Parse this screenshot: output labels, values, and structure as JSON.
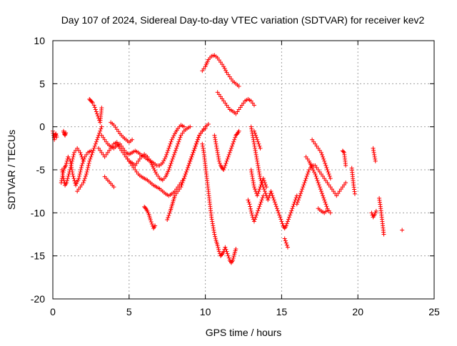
{
  "chart_data": {
    "type": "scatter",
    "title": "Day 107 of 2024, Sidereal Day-to-day VTEC variation (SDTVAR) for receiver kev2",
    "xlabel": "GPS time / hours",
    "ylabel": "SDTVAR / TECUs",
    "xlim": [
      0,
      25
    ],
    "ylim": [
      -20,
      10
    ],
    "xticks": [
      0,
      5,
      10,
      15,
      20,
      25
    ],
    "yticks": [
      -20,
      -15,
      -10,
      -5,
      0,
      5,
      10
    ],
    "grid": true,
    "marker": "+",
    "color": "#ff0000",
    "series": [
      {
        "name": "SDTVAR",
        "segments": [
          {
            "x": [
              0.0,
              0.05,
              0.1,
              0.15,
              0.2,
              0.25
            ],
            "y": [
              -0.5,
              -1.0,
              -1.5,
              -1.0,
              -0.8,
              -1.2
            ]
          },
          {
            "x": [
              0.55,
              0.65,
              0.75,
              0.85,
              1.0,
              1.15,
              1.3,
              1.5,
              1.7,
              1.9,
              2.1,
              2.3,
              2.5
            ],
            "y": [
              -6.5,
              -5.5,
              -4.8,
              -4.5,
              -3.5,
              -4.0,
              -5.5,
              -6.8,
              -6.0,
              -4.5,
              -3.5,
              -3.0,
              -2.8
            ]
          },
          {
            "x": [
              0.6,
              0.7,
              0.8,
              0.9,
              1.05,
              1.2,
              1.4,
              1.6,
              1.8,
              2.0
            ],
            "y": [
              -5.0,
              -6.0,
              -6.8,
              -6.5,
              -5.5,
              -4.5,
              -3.0,
              -2.5,
              -3.0,
              -4.0
            ]
          },
          {
            "x": [
              0.7,
              0.75,
              0.8,
              0.85
            ],
            "y": [
              -0.5,
              -0.8,
              -1.0,
              -0.7
            ]
          },
          {
            "x": [
              2.4,
              2.5,
              2.6
            ],
            "y": [
              3.2,
              3.0,
              2.8
            ]
          },
          {
            "x": [
              1.6,
              1.8,
              2.0,
              2.2,
              2.4,
              2.6,
              2.8,
              3.0,
              3.2
            ],
            "y": [
              -7.5,
              -7.0,
              -6.5,
              -5.5,
              -4.0,
              -3.0,
              -2.0,
              -1.0,
              0.0
            ]
          },
          {
            "x": [
              2.7,
              2.8,
              2.9,
              3.0,
              3.1,
              3.2
            ],
            "y": [
              2.5,
              2.0,
              1.5,
              1.0,
              0.5,
              2.2
            ]
          },
          {
            "x": [
              3.2,
              3.4,
              3.6,
              3.8,
              4.0,
              4.2,
              4.4,
              4.6,
              4.8,
              5.0,
              5.2,
              5.4,
              5.6,
              5.8,
              6.0,
              6.2,
              6.4,
              6.6,
              6.8,
              7.0,
              7.2,
              7.4,
              7.6,
              7.8,
              8.0,
              8.2,
              8.4,
              8.6
            ],
            "y": [
              -1.0,
              -1.5,
              -2.0,
              -2.3,
              -2.5,
              -2.2,
              -2.0,
              -2.5,
              -3.0,
              -3.2,
              -3.0,
              -2.8,
              -3.0,
              -3.3,
              -3.5,
              -3.8,
              -4.0,
              -4.2,
              -4.5,
              -4.5,
              -4.2,
              -3.5,
              -2.5,
              -1.5,
              -0.8,
              -0.2,
              0.2,
              0.0
            ]
          },
          {
            "x": [
              3.0,
              3.2,
              3.4,
              3.6,
              3.8,
              4.0,
              4.2,
              4.4,
              4.6,
              4.8,
              5.0,
              5.2,
              5.4,
              5.6,
              5.8,
              6.0,
              6.2,
              6.4,
              6.6,
              6.8,
              7.0,
              7.2,
              7.4,
              7.6,
              7.8,
              8.0,
              8.2,
              8.4,
              8.6,
              8.8,
              9.0
            ],
            "y": [
              -2.5,
              -3.0,
              -3.5,
              -3.0,
              -2.5,
              -2.0,
              -1.8,
              -2.5,
              -3.0,
              -3.5,
              -4.0,
              -4.2,
              -4.5,
              -4.0,
              -3.5,
              -3.2,
              -3.5,
              -4.0,
              -4.8,
              -5.5,
              -6.0,
              -6.2,
              -5.8,
              -5.0,
              -4.0,
              -3.0,
              -2.0,
              -1.0,
              -0.5,
              -0.2,
              0.0
            ]
          },
          {
            "x": [
              3.8,
              4.0,
              4.2,
              4.4,
              4.6,
              4.8,
              5.0,
              5.2
            ],
            "y": [
              0.5,
              0.2,
              -0.3,
              -0.8,
              -1.2,
              -1.5,
              -1.8,
              -1.5
            ]
          },
          {
            "x": [
              3.4,
              3.6,
              3.8,
              4.0
            ],
            "y": [
              -5.8,
              -6.2,
              -6.6,
              -7.0
            ]
          },
          {
            "x": [
              4.8,
              5.0,
              5.2,
              5.4,
              5.6,
              5.8,
              6.0,
              6.2,
              6.4,
              6.6,
              6.8,
              7.0,
              7.2,
              7.4,
              7.6,
              7.8,
              8.0,
              8.2,
              8.4,
              8.6,
              8.8,
              9.0,
              9.2,
              9.4,
              9.6,
              9.8,
              10.0,
              10.2
            ],
            "y": [
              -3.5,
              -4.0,
              -4.5,
              -5.0,
              -5.5,
              -5.8,
              -6.0,
              -6.2,
              -6.5,
              -6.8,
              -7.0,
              -7.2,
              -7.5,
              -7.8,
              -8.0,
              -7.8,
              -7.5,
              -7.0,
              -6.5,
              -6.0,
              -5.0,
              -4.0,
              -3.0,
              -2.0,
              -1.0,
              -0.5,
              0.0,
              0.3
            ]
          },
          {
            "x": [
              6.0,
              6.1,
              6.2,
              6.3,
              6.4,
              6.5,
              6.6,
              6.7
            ],
            "y": [
              -9.3,
              -9.5,
              -9.8,
              -10.2,
              -10.8,
              -11.3,
              -11.8,
              -11.5
            ]
          },
          {
            "x": [
              7.5,
              7.6,
              7.7,
              7.8,
              7.9,
              8.0,
              8.2,
              8.4,
              8.6,
              8.8,
              9.0,
              9.2,
              9.4,
              9.6,
              9.8,
              10.0
            ],
            "y": [
              -10.8,
              -10.3,
              -9.8,
              -9.2,
              -8.6,
              -8.0,
              -7.5,
              -7.0,
              -6.0,
              -5.0,
              -4.0,
              -3.0,
              -2.0,
              -1.0,
              -0.5,
              -0.2
            ]
          },
          {
            "x": [
              9.8,
              10.0,
              10.2,
              10.4,
              10.6,
              10.8,
              11.0,
              11.2,
              11.4,
              11.6,
              11.8,
              12.0,
              12.2
            ],
            "y": [
              6.5,
              7.0,
              7.8,
              8.2,
              8.3,
              8.0,
              7.5,
              7.0,
              6.3,
              5.8,
              5.3,
              5.0,
              4.7
            ]
          },
          {
            "x": [
              9.8,
              9.9,
              10.0,
              10.1,
              10.2,
              10.3,
              10.4,
              10.5,
              10.6,
              10.7,
              10.8,
              10.9,
              11.0,
              11.1,
              11.2,
              11.3,
              11.4,
              11.5,
              11.6,
              11.7,
              11.8,
              11.9,
              12.0
            ],
            "y": [
              -2.0,
              -3.0,
              -4.5,
              -6.0,
              -7.5,
              -9.0,
              -10.5,
              -11.5,
              -12.5,
              -13.2,
              -13.8,
              -14.5,
              -15.0,
              -14.8,
              -14.5,
              -14.0,
              -14.5,
              -15.0,
              -15.5,
              -15.8,
              -15.5,
              -14.8,
              -14.2
            ]
          },
          {
            "x": [
              10.6,
              10.7,
              10.8,
              10.9,
              11.0,
              11.1,
              11.2,
              11.3,
              11.4,
              11.5,
              11.6,
              11.7,
              11.8,
              11.9,
              12.0,
              12.1,
              12.2
            ],
            "y": [
              -1.0,
              -2.0,
              -3.0,
              -4.0,
              -4.5,
              -4.8,
              -5.0,
              -4.5,
              -4.0,
              -3.5,
              -3.0,
              -2.5,
              -2.0,
              -1.5,
              -1.0,
              -0.8,
              -0.5
            ]
          },
          {
            "x": [
              10.8,
              11.0,
              11.2,
              11.4,
              11.6,
              11.8,
              12.0,
              12.2,
              12.4,
              12.6,
              12.8,
              13.0,
              13.2
            ],
            "y": [
              4.0,
              3.5,
              3.0,
              2.5,
              2.0,
              1.8,
              1.5,
              2.0,
              2.5,
              3.0,
              3.2,
              3.0,
              2.5
            ]
          },
          {
            "x": [
              12.8,
              12.9,
              13.0,
              13.1,
              13.2,
              13.3,
              13.4,
              13.5,
              13.6,
              13.7,
              13.8
            ],
            "y": [
              -8.5,
              -9.0,
              -9.8,
              -10.5,
              -11.0,
              -10.5,
              -10.0,
              -9.5,
              -9.0,
              -8.5,
              -8.0
            ]
          },
          {
            "x": [
              13.0,
              13.1,
              13.2,
              13.3,
              13.4,
              13.5,
              13.6,
              13.7,
              13.8,
              13.9,
              14.0,
              14.1,
              14.2,
              14.3,
              14.4,
              14.5,
              14.6,
              14.7,
              14.8,
              14.9,
              15.0,
              15.1,
              15.2,
              15.3,
              15.4,
              15.5,
              15.6,
              15.7,
              15.8,
              15.9,
              16.0
            ],
            "y": [
              0.0,
              -1.0,
              -2.0,
              -3.0,
              -4.0,
              -5.0,
              -6.0,
              -6.5,
              -7.0,
              -7.5,
              -8.0,
              -8.5,
              -8.0,
              -7.5,
              -8.0,
              -8.5,
              -9.0,
              -9.5,
              -10.0,
              -10.5,
              -11.0,
              -11.5,
              -11.8,
              -11.5,
              -11.0,
              -10.5,
              -10.0,
              -9.5,
              -9.0,
              -8.5,
              -8.0
            ]
          },
          {
            "x": [
              13.0,
              13.1,
              13.2,
              13.3,
              13.4,
              13.5,
              13.6,
              13.7,
              13.8,
              13.9,
              14.0
            ],
            "y": [
              -5.0,
              -6.0,
              -7.0,
              -7.5,
              -8.0,
              -7.5,
              -7.0,
              -6.5,
              -6.0,
              -6.5,
              -7.0
            ]
          },
          {
            "x": [
              13.2,
              13.3,
              13.4,
              13.5,
              13.6
            ],
            "y": [
              -0.5,
              -1.0,
              -1.5,
              -2.0,
              -2.5
            ]
          },
          {
            "x": [
              15.2,
              15.3,
              15.4
            ],
            "y": [
              -13.0,
              -13.5,
              -14.0
            ]
          },
          {
            "x": [
              16.0,
              16.2,
              16.4,
              16.6,
              16.8,
              17.0,
              17.2,
              17.4,
              17.6,
              17.8,
              18.0,
              18.2,
              18.4,
              18.6,
              18.8,
              19.0,
              19.2
            ],
            "y": [
              -9.0,
              -8.0,
              -7.0,
              -6.0,
              -5.0,
              -4.5,
              -4.5,
              -5.0,
              -5.5,
              -6.0,
              -6.5,
              -7.0,
              -7.5,
              -8.0,
              -7.5,
              -7.0,
              -6.5
            ]
          },
          {
            "x": [
              16.6,
              16.8,
              17.0,
              17.2,
              17.4,
              17.6,
              17.8,
              18.0,
              18.2
            ],
            "y": [
              -3.5,
              -4.0,
              -4.8,
              -5.5,
              -6.5,
              -7.5,
              -8.5,
              -9.5,
              -10.0
            ]
          },
          {
            "x": [
              17.0,
              17.2,
              17.4,
              17.6,
              17.8,
              18.0,
              18.2
            ],
            "y": [
              -1.5,
              -2.0,
              -2.5,
              -3.0,
              -4.0,
              -5.0,
              -6.0
            ]
          },
          {
            "x": [
              17.4,
              17.6,
              17.8,
              18.0
            ],
            "y": [
              -9.5,
              -9.8,
              -10.0,
              -9.7
            ]
          },
          {
            "x": [
              19.0,
              19.1,
              19.2
            ],
            "y": [
              -2.8,
              -3.0,
              -4.5
            ]
          },
          {
            "x": [
              19.6,
              19.7,
              19.8
            ],
            "y": [
              -4.8,
              -6.5,
              -7.8
            ]
          },
          {
            "x": [
              20.9,
              21.0,
              21.1,
              21.2
            ],
            "y": [
              -10.0,
              -10.5,
              -10.2,
              -9.8
            ]
          },
          {
            "x": [
              21.0,
              21.05,
              21.1,
              21.15
            ],
            "y": [
              -2.5,
              -3.0,
              -3.5,
              -4.0
            ]
          },
          {
            "x": [
              21.4,
              21.5,
              21.6,
              21.7
            ],
            "y": [
              -8.3,
              -9.5,
              -11.0,
              -12.5
            ]
          },
          {
            "x": [
              22.9
            ],
            "y": [
              -12.0
            ]
          }
        ]
      }
    ]
  }
}
